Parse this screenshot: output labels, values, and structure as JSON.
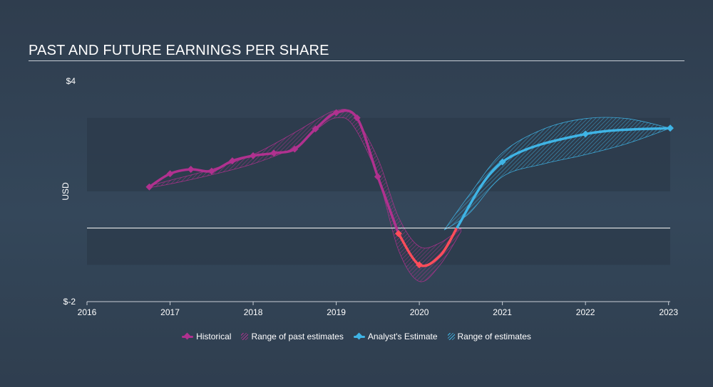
{
  "title": "PAST AND FUTURE EARNINGS PER SHARE",
  "colors": {
    "historical": "#b0318f",
    "historical_negative": "#ff4d5a",
    "estimate": "#3fb4e5",
    "zero_line": "#ffffff",
    "band": "#2c3b4b"
  },
  "legend": {
    "historical": "Historical",
    "past_range": "Range of past estimates",
    "estimate": "Analyst's Estimate",
    "future_range": "Range of estimates"
  },
  "chart_data": {
    "type": "line",
    "title": "PAST AND FUTURE EARNINGS PER SHARE",
    "ylabel": "USD",
    "xlabel": "",
    "xlim": [
      2016,
      2023.02
    ],
    "ylim": [
      -2,
      4
    ],
    "y_tick_labels": [
      "$4",
      "$-2"
    ],
    "x_tick_labels": [
      "2016",
      "2017",
      "2018",
      "2019",
      "2020",
      "2021",
      "2022",
      "2023"
    ],
    "x_ticks": [
      2016,
      2017,
      2018,
      2019,
      2020,
      2021,
      2022,
      2023
    ],
    "series": [
      {
        "name": "Historical",
        "x": [
          2016.75,
          2017.0,
          2017.25,
          2017.5,
          2017.75,
          2018.0,
          2018.25,
          2018.5,
          2018.75,
          2019.0,
          2019.25,
          2019.5,
          2019.75
        ],
        "y": [
          1.12,
          1.48,
          1.6,
          1.55,
          1.83,
          1.97,
          2.04,
          2.15,
          2.7,
          3.14,
          3.0,
          1.4,
          -0.15
        ]
      },
      {
        "name": "Analyst's Estimate",
        "x": [
          2020.0,
          2021.0,
          2022.0,
          2023.02
        ],
        "y": [
          -1.0,
          1.8,
          2.56,
          2.72
        ]
      }
    ],
    "past_range": {
      "name": "Range of past estimates",
      "x": [
        2016.75,
        2017.0,
        2017.5,
        2018.0,
        2018.5,
        2018.8,
        2019.0,
        2019.2,
        2019.5,
        2019.75,
        2020.0,
        2020.25,
        2020.5
      ],
      "upper": [
        1.15,
        1.3,
        1.6,
        2.0,
        2.6,
        3.0,
        3.2,
        3.1,
        1.9,
        0.3,
        -0.5,
        -0.4,
        0.0
      ],
      "lower": [
        1.1,
        1.2,
        1.45,
        1.75,
        2.2,
        2.75,
        3.0,
        2.8,
        1.4,
        -0.6,
        -1.45,
        -1.0,
        -0.1
      ]
    },
    "future_range": {
      "name": "Range of estimates",
      "x": [
        2020.3,
        2020.6,
        2021.0,
        2021.5,
        2022.0,
        2022.5,
        2023.02
      ],
      "upper": [
        -0.05,
        0.9,
        2.05,
        2.7,
        2.98,
        2.98,
        2.72
      ],
      "lower": [
        -0.05,
        0.4,
        1.4,
        1.75,
        2.0,
        2.3,
        2.72
      ]
    }
  }
}
